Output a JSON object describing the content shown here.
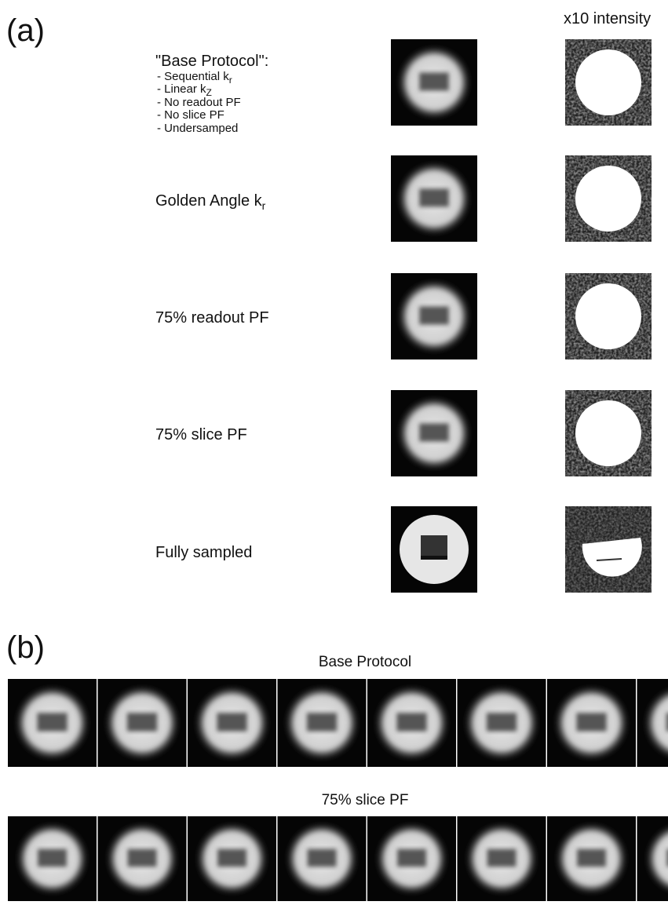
{
  "panel_a": {
    "label": "(a)",
    "column_header": "x10 intensity",
    "rows": [
      {
        "title": "\"Base Protocol\":",
        "items": [
          {
            "text": "- Sequential k",
            "sub": "r"
          },
          {
            "text": "- Linear k",
            "sub": "Z"
          },
          {
            "text": "- No readout PF"
          },
          {
            "text": "- No slice PF"
          },
          {
            "text": "- Undersamped"
          }
        ]
      },
      {
        "title": "Golden Angle k",
        "sub": "r"
      },
      {
        "title": "75% readout PF"
      },
      {
        "title": "75% slice PF"
      },
      {
        "title": "Fully sampled"
      }
    ]
  },
  "panel_b": {
    "label": "(b)",
    "strips": [
      {
        "title": "Base Protocol"
      },
      {
        "title": "75% slice PF"
      }
    ]
  }
}
